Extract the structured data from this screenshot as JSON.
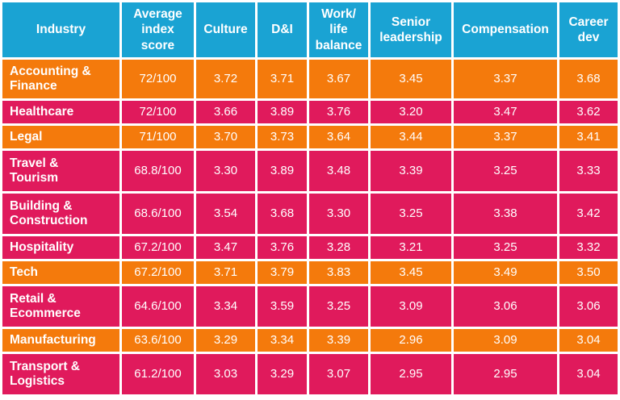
{
  "chart_data": {
    "type": "table",
    "columns": [
      "Industry",
      "Average\nindex\nscore",
      "Culture",
      "D&I",
      "Work/\nlife\nbalance",
      "Senior\nleadership",
      "Compensation",
      "Career\ndev"
    ],
    "rows": [
      {
        "industry": "Accounting &\nFinance",
        "values": [
          "72/100",
          "3.72",
          "3.71",
          "3.67",
          "3.45",
          "3.37",
          "3.68"
        ]
      },
      {
        "industry": "Healthcare",
        "values": [
          "72/100",
          "3.66",
          "3.89",
          "3.76",
          "3.20",
          "3.47",
          "3.62"
        ]
      },
      {
        "industry": "Legal",
        "values": [
          "71/100",
          "3.70",
          "3.73",
          "3.64",
          "3.44",
          "3.37",
          "3.41"
        ]
      },
      {
        "industry": "Travel &\nTourism",
        "values": [
          "68.8/100",
          "3.30",
          "3.89",
          "3.48",
          "3.39",
          "3.25",
          "3.33"
        ]
      },
      {
        "industry": "Building &\nConstruction",
        "values": [
          "68.6/100",
          "3.54",
          "3.68",
          "3.30",
          "3.25",
          "3.38",
          "3.42"
        ]
      },
      {
        "industry": "Hospitality",
        "values": [
          "67.2/100",
          "3.47",
          "3.76",
          "3.28",
          "3.21",
          "3.25",
          "3.32"
        ]
      },
      {
        "industry": "Tech",
        "values": [
          "67.2/100",
          "3.71",
          "3.79",
          "3.83",
          "3.45",
          "3.49",
          "3.50"
        ]
      },
      {
        "industry": "Retail &\nEcommerce",
        "values": [
          "64.6/100",
          "3.34",
          "3.59",
          "3.25",
          "3.09",
          "3.06",
          "3.06"
        ]
      },
      {
        "industry": "Manufacturing",
        "values": [
          "63.6/100",
          "3.29",
          "3.34",
          "3.39",
          "2.96",
          "3.09",
          "3.04"
        ]
      },
      {
        "industry": "Transport &\nLogistics",
        "values": [
          "61.2/100",
          "3.03",
          "3.29",
          "3.07",
          "2.95",
          "2.95",
          "3.04"
        ]
      }
    ],
    "colors": {
      "header": "#1aa3d3",
      "orange_row": "#f47a0c",
      "pink_row": "#e01a5c",
      "text": "#ffffff"
    },
    "row_color_sequence": [
      "orange_row",
      "pink_row",
      "orange_row",
      "pink_row",
      "pink_row",
      "pink_row",
      "orange_row",
      "pink_row",
      "orange_row",
      "pink_row"
    ]
  }
}
